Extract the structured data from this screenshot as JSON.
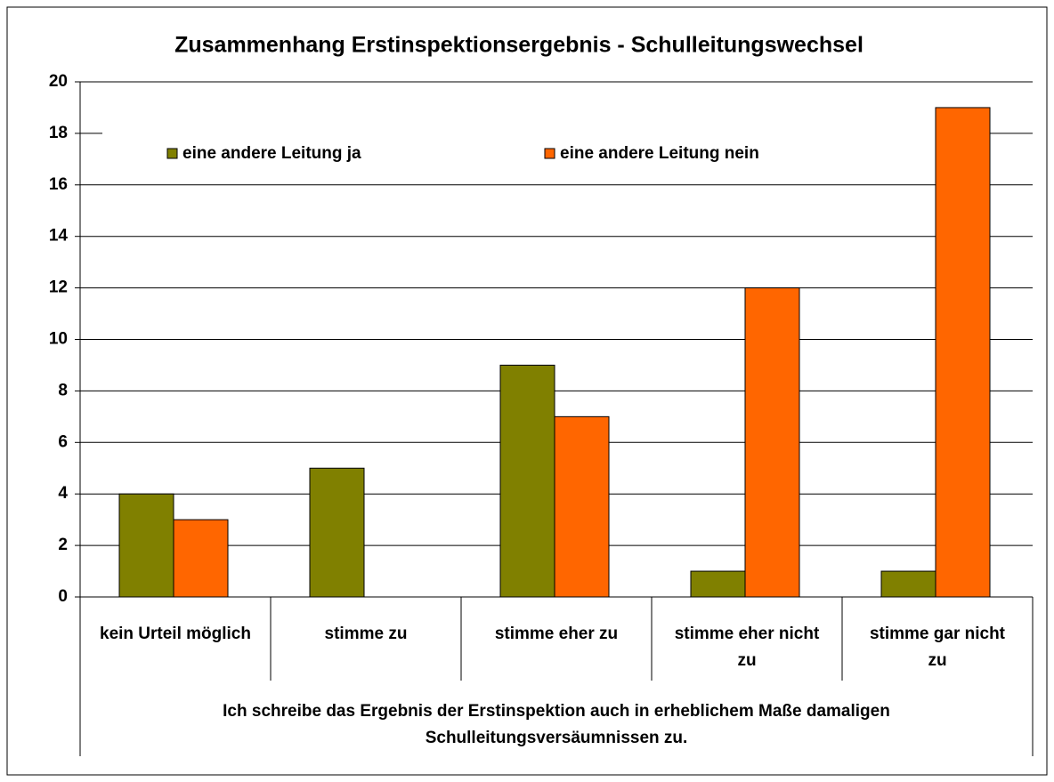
{
  "chart_data": {
    "type": "bar",
    "title": "Zusammenhang Erstinspektionsergebnis - Schulleitungswechsel",
    "x_label": "Ich schreibe das Ergebnis der Erstinspektion auch in erheblichem Maße damaligen Schulleitungsversäumnissen zu.",
    "categories": [
      "kein Urteil möglich",
      "stimme zu",
      "stimme eher zu",
      "stimme eher nicht zu",
      "stimme gar nicht zu"
    ],
    "series": [
      {
        "name": "eine andere Leitung ja",
        "color": "#808000",
        "values": [
          4,
          5,
          9,
          1,
          1
        ]
      },
      {
        "name": "eine andere Leitung nein",
        "color": "#ff6600",
        "values": [
          3,
          0,
          7,
          12,
          19
        ]
      }
    ],
    "ylim": [
      0,
      20
    ],
    "yticks": [
      0,
      2,
      4,
      6,
      8,
      10,
      12,
      14,
      16,
      18,
      20
    ],
    "grid": true,
    "legend": "top"
  }
}
